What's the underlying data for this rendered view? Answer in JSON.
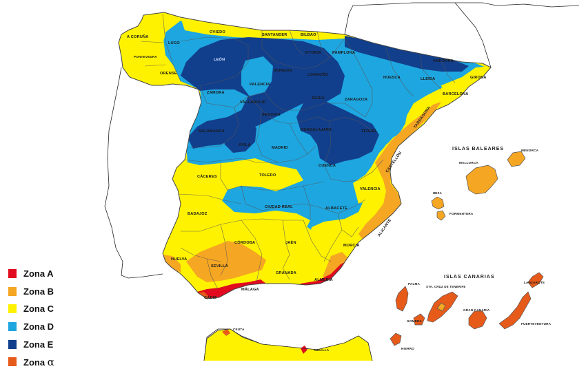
{
  "colors": {
    "zona_a": "#e10a1e",
    "zona_b": "#f5a623",
    "zona_c": "#fff200",
    "zona_d": "#1ea6e0",
    "zona_e": "#123f8c",
    "zona_alpha": "#e65a1a",
    "border": "#4a4a4a",
    "neighbor": "#ffffff"
  },
  "legend": {
    "items": [
      {
        "label": "Zona A",
        "color_key": "zona_a"
      },
      {
        "label": "Zona B",
        "color_key": "zona_b"
      },
      {
        "label": "Zona C",
        "color_key": "zona_c"
      },
      {
        "label": "Zona D",
        "color_key": "zona_d"
      },
      {
        "label": "Zona E",
        "color_key": "zona_e"
      },
      {
        "label_prefix": "Zona ",
        "label_symbol": "α",
        "color_key": "zona_alpha"
      }
    ]
  },
  "regions": {
    "islas_baleares": "ISLAS BALEARES",
    "islas_canarias": "ISLAS CANARIAS"
  },
  "provinces": {
    "a_coruna": "A CORUÑA",
    "pontevedra": "PONTEVEDRA",
    "lugo": "LUGO",
    "orense": "ORENSE",
    "oviedo": "OVIEDO",
    "santander": "SANTANDER",
    "bilbao": "BILBAO",
    "leon": "LEÓN",
    "vitoria": "VITORIA",
    "pamplona": "PAMPLONA",
    "andorra": "ANDORRA",
    "burgos": "BURGOS",
    "palencia": "PALENCIA",
    "logrono": "LOGROÑO",
    "huesca": "HUESCA",
    "lleida": "LLEIDA",
    "girona": "GIRONA",
    "zamora": "ZAMORA",
    "valladolid": "VALLADOLID",
    "soria": "SORIA",
    "zaragoza": "ZARAGOZA",
    "barcelona": "BARCELONA",
    "tarragona": "TARRAGONA",
    "segovia": "SEGOVIA",
    "salamanca": "SALAMANCA",
    "guadalajara": "GUADALAJARA",
    "teruel": "TERUEL",
    "avila": "ÁVILA",
    "madrid": "MADRID",
    "cuenca": "CUENCA",
    "castellon": "CASTELLÓN",
    "caceres": "CÁCERES",
    "toledo": "TOLEDO",
    "valencia": "VALENCIA",
    "badajoz": "BADAJOZ",
    "ciudad_real": "CIUDAD REAL",
    "albacete": "ALBACETE",
    "alicante": "ALICANTE",
    "cordoba": "CÓRDOBA",
    "jaen": "JAÉN",
    "murcia": "MURCIA",
    "huelva": "HUELVA",
    "sevilla": "SEVILLA",
    "granada": "GRANADA",
    "almeria": "ALMERÍA",
    "cadiz": "CÁDIZ",
    "malaga": "MÁLAGA",
    "ceuta": "CEUTA",
    "melilla": "MELILLA",
    "mallorca": "MALLORCA",
    "menorca": "MENORCA",
    "ibiza": "IBIZA",
    "formentera": "FORMENTERA",
    "palma": "PALMA",
    "tenerife": "STA. CRUZ DE TENERIFE",
    "lanzarote": "LANZAROTE",
    "gran_canaria": "GRAN CANARIA",
    "fuerteventura": "FUERTEVENTURA",
    "gomera": "GOMERA",
    "hierro": "HIERRO"
  }
}
